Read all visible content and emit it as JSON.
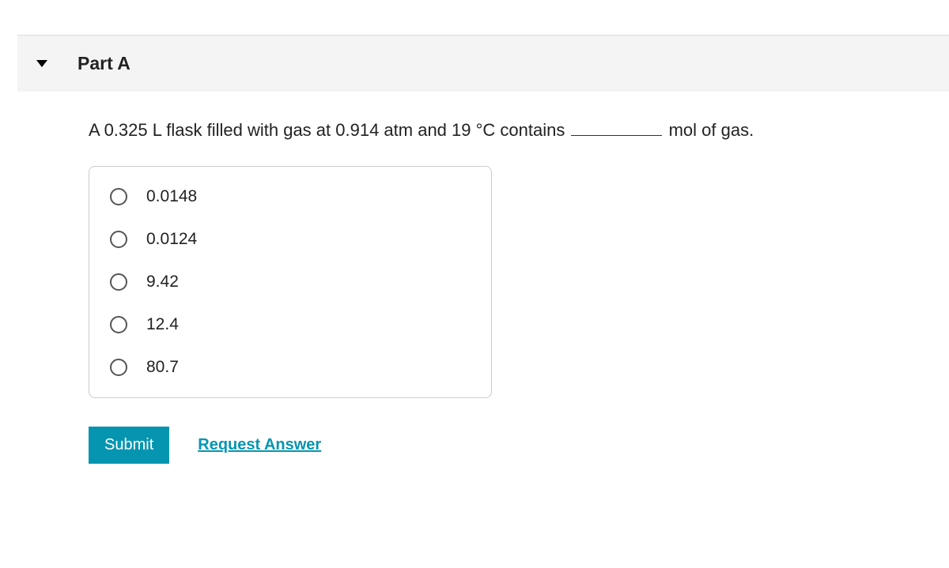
{
  "header": {
    "part_label": "Part A"
  },
  "question": {
    "text_before_blank": "A 0.325 L flask filled with gas at 0.914 atm and 19 °C contains ",
    "text_after_blank": " mol of gas."
  },
  "options": [
    {
      "label": "0.0148"
    },
    {
      "label": "0.0124"
    },
    {
      "label": "9.42"
    },
    {
      "label": "12.4"
    },
    {
      "label": "80.7"
    }
  ],
  "actions": {
    "submit_label": "Submit",
    "request_answer_label": "Request Answer"
  }
}
